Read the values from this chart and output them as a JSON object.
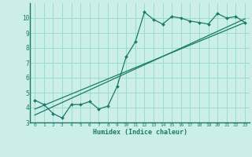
{
  "xlabel": "Humidex (Indice chaleur)",
  "ylabel": "",
  "bg_color": "#cceee8",
  "grid_color": "#99ddcc",
  "line_color": "#1a7a6a",
  "xlim": [
    -0.5,
    23.5
  ],
  "ylim": [
    3,
    11
  ],
  "xticks": [
    0,
    1,
    2,
    3,
    4,
    5,
    6,
    7,
    8,
    9,
    10,
    11,
    12,
    13,
    14,
    15,
    16,
    17,
    18,
    19,
    20,
    21,
    22,
    23
  ],
  "yticks": [
    3,
    4,
    5,
    6,
    7,
    8,
    9,
    10
  ],
  "data_line": {
    "x": [
      0,
      1,
      2,
      3,
      4,
      5,
      6,
      7,
      8,
      9,
      10,
      11,
      12,
      13,
      14,
      15,
      16,
      17,
      18,
      19,
      20,
      21,
      22,
      23
    ],
    "y": [
      4.5,
      4.2,
      3.6,
      3.3,
      4.2,
      4.2,
      4.4,
      3.9,
      4.1,
      5.4,
      7.4,
      8.4,
      10.4,
      9.9,
      9.6,
      10.1,
      10.0,
      9.8,
      9.7,
      9.6,
      10.3,
      10.0,
      10.1,
      9.7
    ]
  },
  "line1": {
    "x": [
      0,
      23
    ],
    "y": [
      3.9,
      9.7
    ]
  },
  "line2": {
    "x": [
      0,
      23
    ],
    "y": [
      3.5,
      9.95
    ]
  }
}
